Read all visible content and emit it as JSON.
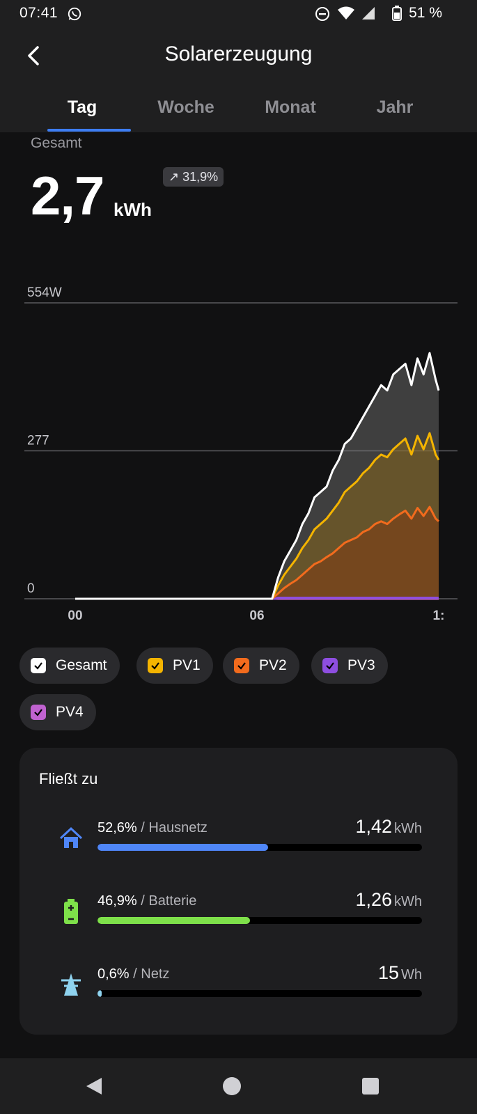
{
  "status": {
    "time": "07:41",
    "battery": "51 %"
  },
  "header": {
    "title": "Solarerzeugung"
  },
  "tabs": [
    {
      "label": "Tag"
    },
    {
      "label": "Woche"
    },
    {
      "label": "Monat"
    },
    {
      "label": "Jahr"
    }
  ],
  "summary": {
    "label": "Gesamt",
    "value": "2,7",
    "unit": "kWh",
    "change": "31,9%"
  },
  "chart_data": {
    "type": "area",
    "y_tick_labels": [
      "554W",
      "277",
      "0"
    ],
    "x_tick_labels": [
      "00",
      "06",
      "1:"
    ],
    "ylim": [
      0,
      554
    ],
    "x_unit_hours": [
      0,
      12
    ],
    "series": [
      {
        "name": "Gesamt",
        "color": "#ffffff",
        "x": [
          0,
          6.5,
          6.7,
          6.9,
          7.1,
          7.3,
          7.5,
          7.7,
          7.9,
          8.1,
          8.3,
          8.5,
          8.7,
          8.9,
          9.1,
          9.3,
          9.5,
          9.7,
          9.9,
          10.1,
          10.3,
          10.5,
          10.7,
          10.9,
          11.1,
          11.3,
          11.5,
          11.7,
          11.9,
          12.0
        ],
        "y": [
          0,
          0,
          40,
          70,
          90,
          110,
          140,
          160,
          190,
          200,
          210,
          240,
          260,
          290,
          300,
          320,
          340,
          360,
          380,
          400,
          390,
          420,
          430,
          440,
          400,
          450,
          420,
          460,
          410,
          390
        ]
      },
      {
        "name": "PV1",
        "color": "#f4b400",
        "x": [
          0,
          6.5,
          6.7,
          6.9,
          7.1,
          7.3,
          7.5,
          7.7,
          7.9,
          8.1,
          8.3,
          8.5,
          8.7,
          8.9,
          9.1,
          9.3,
          9.5,
          9.7,
          9.9,
          10.1,
          10.3,
          10.5,
          10.7,
          10.9,
          11.1,
          11.3,
          11.5,
          11.7,
          11.9,
          12.0
        ],
        "y": [
          0,
          0,
          25,
          45,
          60,
          75,
          95,
          110,
          130,
          140,
          150,
          165,
          180,
          200,
          210,
          220,
          235,
          245,
          260,
          270,
          265,
          280,
          290,
          300,
          270,
          305,
          280,
          310,
          270,
          260
        ]
      },
      {
        "name": "PV2",
        "color": "#f26b1d",
        "x": [
          0,
          6.5,
          6.7,
          6.9,
          7.1,
          7.3,
          7.5,
          7.7,
          7.9,
          8.1,
          8.3,
          8.5,
          8.7,
          8.9,
          9.1,
          9.3,
          9.5,
          9.7,
          9.9,
          10.1,
          10.3,
          10.5,
          10.7,
          10.9,
          11.1,
          11.3,
          11.5,
          11.7,
          11.9,
          12.0
        ],
        "y": [
          0,
          0,
          10,
          20,
          28,
          35,
          45,
          55,
          65,
          70,
          78,
          85,
          95,
          105,
          110,
          115,
          125,
          130,
          140,
          145,
          140,
          150,
          158,
          165,
          150,
          170,
          155,
          172,
          150,
          145
        ]
      },
      {
        "name": "PV3",
        "color": "#8e4ee0",
        "x": [
          0,
          6.6,
          6.7,
          12.0
        ],
        "y": [
          0,
          0,
          2,
          2
        ]
      },
      {
        "name": "PV4",
        "color": "#c062d0",
        "x": [
          0,
          12.0
        ],
        "y": [
          0,
          0
        ]
      }
    ]
  },
  "legend": [
    {
      "label": "Gesamt",
      "color": "#ffffff"
    },
    {
      "label": "PV1",
      "color": "#f4b400"
    },
    {
      "label": "PV2",
      "color": "#f26b1d"
    },
    {
      "label": "PV3",
      "color": "#8e4ee0"
    },
    {
      "label": "PV4",
      "color": "#c062d0"
    }
  ],
  "flows": {
    "title": "Fließt zu",
    "items": [
      {
        "percent": "52,6%",
        "label": " / Hausnetz",
        "value": "1,42",
        "unit": "kWh",
        "fraction": 0.526,
        "color": "#4f86f7",
        "icon": "house-icon"
      },
      {
        "percent": "46,9%",
        "label": " / Batterie",
        "value": "1,26",
        "unit": "kWh",
        "fraction": 0.469,
        "color": "#7ee04a",
        "icon": "battery-icon"
      },
      {
        "percent": "0,6%",
        "label": " / Netz",
        "value": "15",
        "unit": "Wh",
        "fraction": 0.006,
        "color": "#8fd3ef",
        "icon": "grid-tower-icon"
      }
    ]
  }
}
